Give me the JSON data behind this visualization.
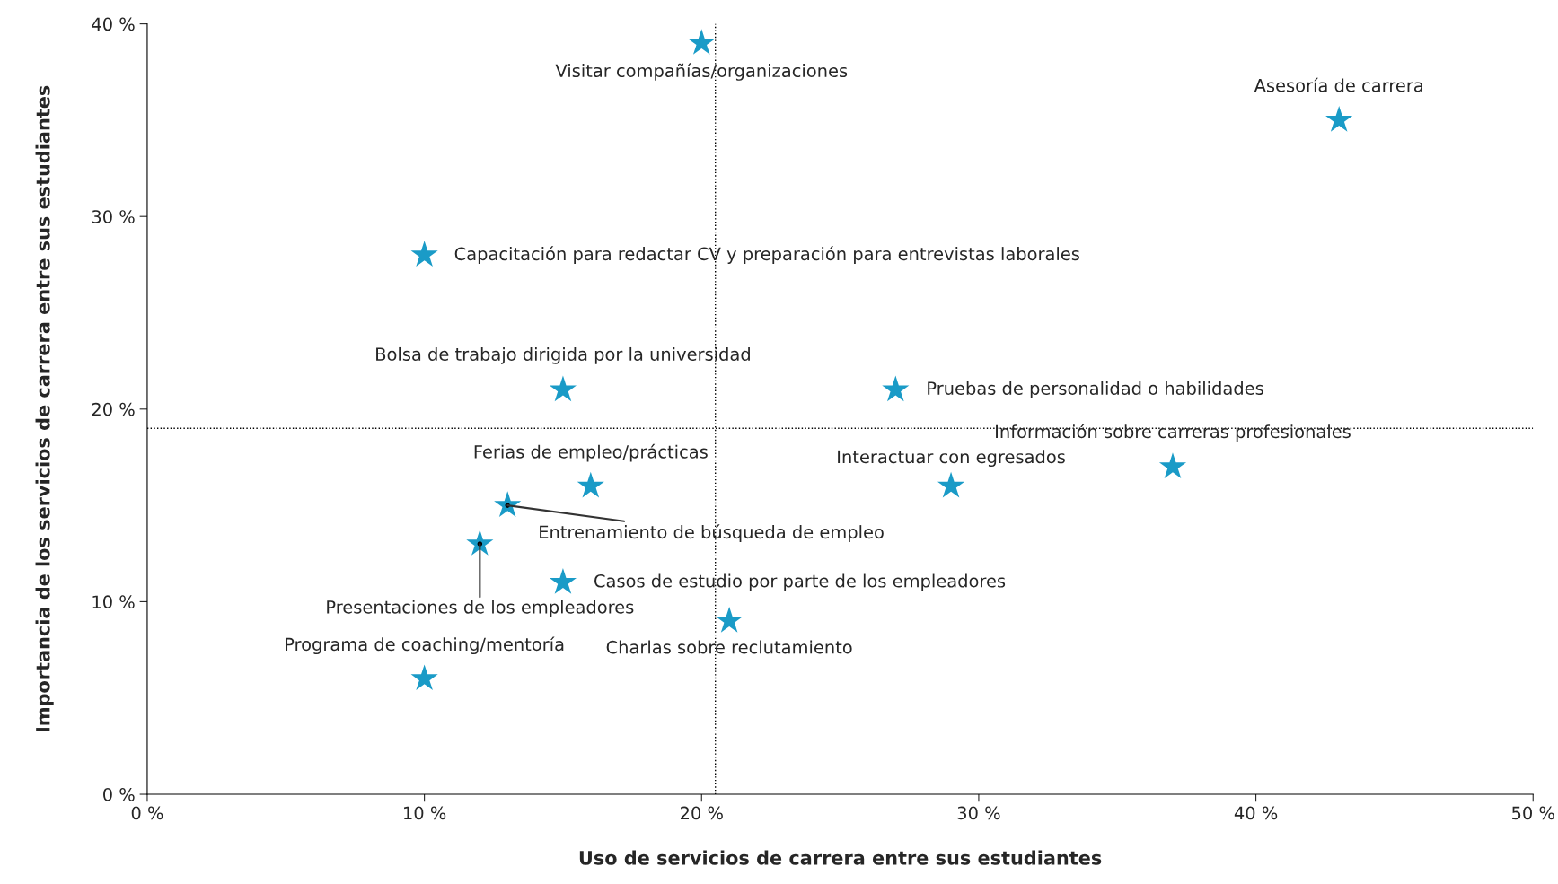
{
  "chart_data": {
    "type": "scatter",
    "xlabel": "Uso de servicios de carrera entre sus estudiantes",
    "ylabel": "Importancia de los servicios de carrera entre sus estudiantes",
    "x": [
      20,
      43,
      10,
      15,
      27,
      37,
      29,
      16,
      13,
      12,
      15,
      21,
      10
    ],
    "series": [
      {
        "color": "#1a9bc7",
        "values": [
          39,
          35,
          28,
          21,
          21,
          17,
          16,
          16,
          15,
          13,
          11,
          9,
          6
        ]
      }
    ],
    "annotations": [
      {
        "text": "Visitar compañías/organizaciones",
        "x": 20,
        "y": 39
      },
      {
        "text": "Asesoría de carrera",
        "x": 43,
        "y": 35
      },
      {
        "text": "Capacitación para redactar CV y preparación para entrevistas laborales",
        "x": 10,
        "y": 28
      },
      {
        "text": "Bolsa de trabajo dirigida por la universidad",
        "x": 15,
        "y": 21
      },
      {
        "text": "Pruebas de personalidad o habilidades",
        "x": 27,
        "y": 21
      },
      {
        "text": "Información sobre carreras profesionales",
        "x": 37,
        "y": 17
      },
      {
        "text": "Interactuar con egresados",
        "x": 29,
        "y": 16
      },
      {
        "text": "Ferias de empleo/prácticas",
        "x": 16,
        "y": 16
      },
      {
        "text": "Entrenamiento de búsqueda de empleo",
        "x": 13,
        "y": 15
      },
      {
        "text": "Presentaciones de los empleadores",
        "x": 12,
        "y": 13
      },
      {
        "text": "Casos de estudio por parte de los empleadores",
        "x": 15,
        "y": 11
      },
      {
        "text": "Charlas sobre reclutamiento",
        "x": 21,
        "y": 9
      },
      {
        "text": "Programa de coaching/mentoría",
        "x": 10,
        "y": 6
      }
    ],
    "xlim": [
      0,
      50
    ],
    "ylim": [
      0,
      40
    ],
    "xticks": [
      {
        "value": 0,
        "label": "0 %"
      },
      {
        "value": 10,
        "label": "10 %"
      },
      {
        "value": 20,
        "label": "20 %"
      },
      {
        "value": 30,
        "label": "30 %"
      },
      {
        "value": 40,
        "label": "40 %"
      },
      {
        "value": 50,
        "label": "50 %"
      }
    ],
    "yticks": [
      {
        "value": 0,
        "label": "0 %"
      },
      {
        "value": 10,
        "label": "10 %"
      },
      {
        "value": 20,
        "label": "20 %"
      },
      {
        "value": 30,
        "label": "30 %"
      },
      {
        "value": 40,
        "label": "40 %"
      }
    ],
    "ref_lines": [
      {
        "axis": "x",
        "value": 20.5,
        "color": "#000000",
        "line_style": "dotted"
      },
      {
        "axis": "y",
        "value": 19,
        "color": "#000000",
        "line_style": "dotted"
      }
    ],
    "marker": "star",
    "grid": false,
    "legend": false
  }
}
